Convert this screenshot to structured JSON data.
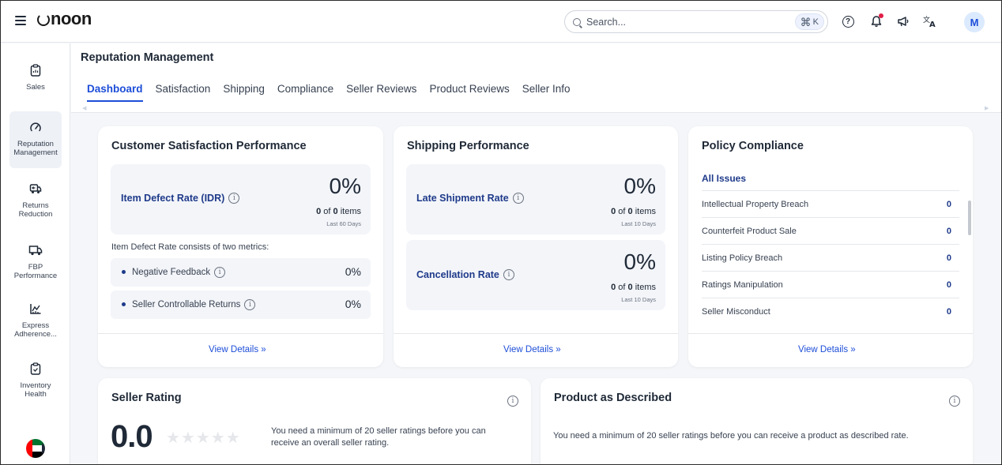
{
  "header": {
    "logo": "noon",
    "search_placeholder": "Search...",
    "search_shortcut": "K",
    "avatar_initial": "M",
    "accent_color": "#1d4ed8"
  },
  "sidebar": {
    "items": [
      {
        "label": "Sales",
        "icon": "clipboard-icon"
      },
      {
        "label": "Reputation Management",
        "icon": "gauge-icon"
      },
      {
        "label": "Returns Reduction",
        "icon": "return-truck-icon"
      },
      {
        "label": "FBP Performance",
        "icon": "truck-icon"
      },
      {
        "label": "Express Adherence...",
        "icon": "chart-icon"
      },
      {
        "label": "Inventory Health",
        "icon": "inventory-icon"
      }
    ],
    "active_index": 1,
    "flag": "uae-flag"
  },
  "page": {
    "title": "Reputation Management",
    "tabs": [
      "Dashboard",
      "Satisfaction",
      "Shipping",
      "Compliance",
      "Seller Reviews",
      "Product Reviews",
      "Seller Info"
    ],
    "active_tab": "Dashboard"
  },
  "customer_satisfaction": {
    "title": "Customer Satisfaction Performance",
    "idr_label": "Item Defect Rate (IDR)",
    "idr_value": "0%",
    "idr_count_a": "0",
    "idr_count_mid": "of",
    "idr_count_b": "0",
    "idr_count_unit": "items",
    "idr_period": "Last 60 Days",
    "consists_text": "Item Defect Rate consists of two metrics:",
    "sub_metrics": [
      {
        "label": "Negative Feedback",
        "value": "0%"
      },
      {
        "label": "Seller Controllable Returns",
        "value": "0%"
      }
    ],
    "view_details": "View Details »"
  },
  "shipping": {
    "title": "Shipping Performance",
    "metrics": [
      {
        "label": "Late Shipment Rate",
        "value": "0%",
        "count_a": "0",
        "count_mid": "of",
        "count_b": "0",
        "count_unit": "items",
        "period": "Last 10 Days"
      },
      {
        "label": "Cancellation Rate",
        "value": "0%",
        "count_a": "0",
        "count_mid": "of",
        "count_b": "0",
        "count_unit": "items",
        "period": "Last 10 Days"
      }
    ],
    "view_details": "View Details »"
  },
  "policy": {
    "title": "Policy Compliance",
    "all_issues": "All Issues",
    "rows": [
      {
        "label": "Intellectual Property Breach",
        "value": "0"
      },
      {
        "label": "Counterfeit Product Sale",
        "value": "0"
      },
      {
        "label": "Listing Policy Breach",
        "value": "0"
      },
      {
        "label": "Ratings Manipulation",
        "value": "0"
      },
      {
        "label": "Seller Misconduct",
        "value": "0"
      }
    ],
    "view_details": "View Details »"
  },
  "seller_rating": {
    "title": "Seller Rating",
    "value": "0.0",
    "stars": "★★★★★",
    "note": "You need a minimum of 20 seller ratings before you can receive an overall seller rating."
  },
  "product_described": {
    "title": "Product as Described",
    "note": "You need a minimum of 20 seller ratings before you can receive a product as described rate."
  }
}
